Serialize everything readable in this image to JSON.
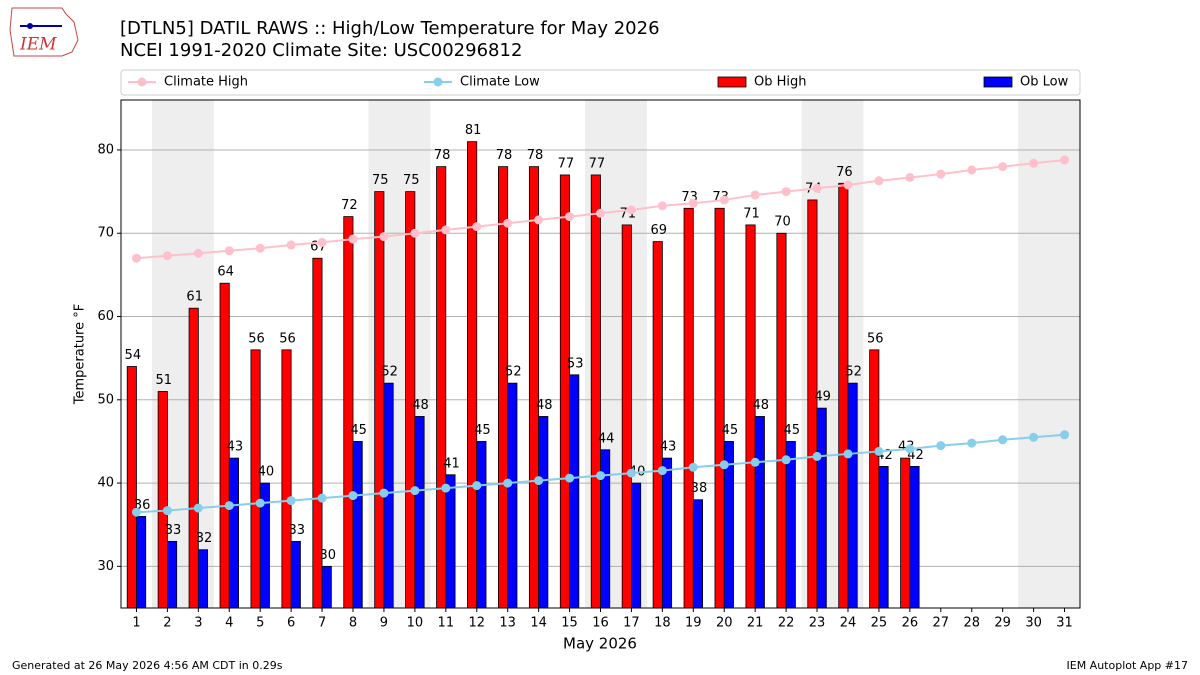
{
  "chart_data": {
    "type": "bar",
    "title": "[DTLN5] DATIL RAWS :: High/Low Temperature for May 2026",
    "subtitle": "NCEI 1991-2020 Climate Site: USC00296812",
    "x_label": "May 2026",
    "y_label": "Temperature °F",
    "logo_text": "IEM",
    "footer_left": "Generated at 26 May 2026 4:56 AM CDT in 0.29s",
    "footer_right": "IEM Autoplot App #17",
    "categories": [
      1,
      2,
      3,
      4,
      5,
      6,
      7,
      8,
      9,
      10,
      11,
      12,
      13,
      14,
      15,
      16,
      17,
      18,
      19,
      20,
      21,
      22,
      23,
      24,
      25,
      26,
      27,
      28,
      29,
      30,
      31
    ],
    "xlim": [
      0.5,
      31.5
    ],
    "ylim": [
      25,
      86
    ],
    "yticks": [
      30,
      40,
      50,
      60,
      70,
      80
    ],
    "grid": true,
    "shaded_bands": [
      [
        2,
        3
      ],
      [
        9,
        10
      ],
      [
        16,
        17
      ],
      [
        23,
        24
      ],
      [
        30,
        31
      ]
    ],
    "series": [
      {
        "name": "Climate High",
        "kind": "line",
        "color": "#ffc0cb",
        "values": [
          67.0,
          67.3,
          67.6,
          67.9,
          68.2,
          68.6,
          68.9,
          69.3,
          69.6,
          70.0,
          70.4,
          70.8,
          71.2,
          71.6,
          72.0,
          72.4,
          72.8,
          73.3,
          73.6,
          74.0,
          74.6,
          75.0,
          75.4,
          75.8,
          76.3,
          76.7,
          77.1,
          77.6,
          78.0,
          78.4,
          78.8
        ]
      },
      {
        "name": "Climate Low",
        "kind": "line",
        "color": "#87ceeb",
        "values": [
          36.5,
          36.7,
          37.0,
          37.3,
          37.6,
          37.9,
          38.2,
          38.5,
          38.8,
          39.1,
          39.4,
          39.7,
          40.0,
          40.3,
          40.6,
          40.9,
          41.2,
          41.5,
          41.9,
          42.2,
          42.5,
          42.8,
          43.2,
          43.5,
          43.8,
          44.1,
          44.5,
          44.8,
          45.2,
          45.5,
          45.8
        ]
      },
      {
        "name": "Ob High",
        "kind": "bar",
        "color": "#ff0000",
        "values": [
          54,
          51,
          61,
          64,
          56,
          56,
          67,
          72,
          75,
          75,
          78,
          81,
          78,
          78,
          77,
          77,
          71,
          69,
          73,
          73,
          71,
          70,
          74,
          76,
          56,
          43,
          null,
          null,
          null,
          null,
          null
        ]
      },
      {
        "name": "Ob Low",
        "kind": "bar",
        "color": "#0000ff",
        "values": [
          36,
          33,
          32,
          43,
          40,
          33,
          30,
          45,
          52,
          48,
          41,
          45,
          52,
          48,
          53,
          44,
          40,
          43,
          38,
          45,
          48,
          45,
          49,
          52,
          42,
          42,
          null,
          null,
          null,
          null,
          null
        ]
      }
    ]
  }
}
